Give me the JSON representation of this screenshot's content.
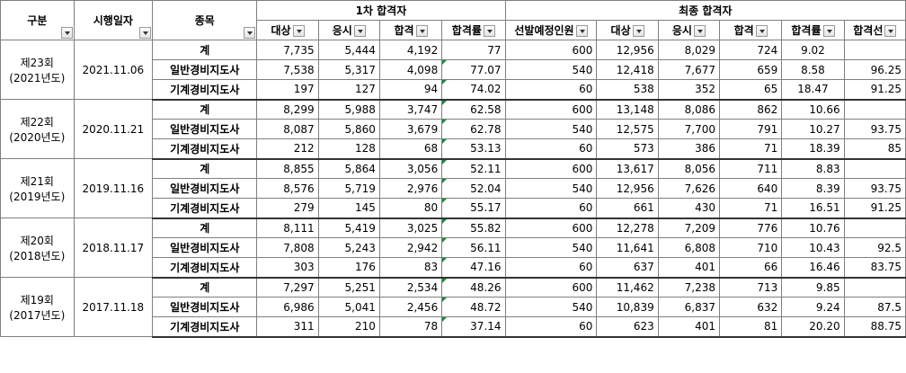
{
  "header": {
    "group_round1": "1차 합격자",
    "group_final": "최종 합격자",
    "col_category": "구분",
    "col_date": "시행일자",
    "col_type": "종목",
    "sub_round1": [
      "대상",
      "응시",
      "합격",
      "합격률"
    ],
    "sub_final": [
      "선발예정인원",
      "대상",
      "응시",
      "합격",
      "합격률",
      "합격선"
    ]
  },
  "sessions": [
    {
      "name": "제23회",
      "year": "(2021년도)",
      "date": "2021.11.06",
      "rows": [
        {
          "type": "계",
          "r1": [
            "7,735",
            "5,444",
            "4,192",
            "77"
          ],
          "fin": [
            "600",
            "12,956",
            "8,029",
            "724",
            "9.02",
            ""
          ]
        },
        {
          "type": "일반경비지도사",
          "r1": [
            "7,538",
            "5,317",
            "4,098",
            "77.07"
          ],
          "fin": [
            "540",
            "12,418",
            "7,677",
            "659",
            "8.58",
            "96.25"
          ]
        },
        {
          "type": "기계경비지도사",
          "r1": [
            "197",
            "127",
            "94",
            "74.02"
          ],
          "fin": [
            "60",
            "538",
            "352",
            "65",
            "18.47",
            "91.25"
          ]
        }
      ]
    },
    {
      "name": "제22회",
      "year": "(2020년도)",
      "date": "2020.11.21",
      "rows": [
        {
          "type": "계",
          "r1": [
            "8,299",
            "5,988",
            "3,747",
            "62.58"
          ],
          "fin": [
            "600",
            "13,148",
            "8,086",
            "862",
            "10.66",
            ""
          ]
        },
        {
          "type": "일반경비지도사",
          "r1": [
            "8,087",
            "5,860",
            "3,679",
            "62.78"
          ],
          "fin": [
            "540",
            "12,575",
            "7,700",
            "791",
            "10.27",
            "93.75"
          ]
        },
        {
          "type": "기계경비지도사",
          "r1": [
            "212",
            "128",
            "68",
            "53.13"
          ],
          "fin": [
            "60",
            "573",
            "386",
            "71",
            "18.39",
            "85"
          ]
        }
      ]
    },
    {
      "name": "제21회",
      "year": "(2019년도)",
      "date": "2019.11.16",
      "rows": [
        {
          "type": "계",
          "r1": [
            "8,855",
            "5,864",
            "3,056",
            "52.11"
          ],
          "fin": [
            "600",
            "13,617",
            "8,056",
            "711",
            "8.83",
            ""
          ]
        },
        {
          "type": "일반경비지도사",
          "r1": [
            "8,576",
            "5,719",
            "2,976",
            "52.04"
          ],
          "fin": [
            "540",
            "12,956",
            "7,626",
            "640",
            "8.39",
            "93.75"
          ]
        },
        {
          "type": "기계경비지도사",
          "r1": [
            "279",
            "145",
            "80",
            "55.17"
          ],
          "fin": [
            "60",
            "661",
            "430",
            "71",
            "16.51",
            "91.25"
          ]
        }
      ]
    },
    {
      "name": "제20회",
      "year": "(2018년도)",
      "date": "2018.11.17",
      "rows": [
        {
          "type": "계",
          "r1": [
            "8,111",
            "5,419",
            "3,025",
            "55.82"
          ],
          "fin": [
            "600",
            "12,278",
            "7,209",
            "776",
            "10.76",
            ""
          ]
        },
        {
          "type": "일반경비지도사",
          "r1": [
            "7,808",
            "5,243",
            "2,942",
            "56.11"
          ],
          "fin": [
            "540",
            "11,641",
            "6,808",
            "710",
            "10.43",
            "92.5"
          ]
        },
        {
          "type": "기계경비지도사",
          "r1": [
            "303",
            "176",
            "83",
            "47.16"
          ],
          "fin": [
            "60",
            "637",
            "401",
            "66",
            "16.46",
            "83.75"
          ]
        }
      ]
    },
    {
      "name": "제19회",
      "year": "(2017년도)",
      "date": "2017.11.18",
      "rows": [
        {
          "type": "계",
          "r1": [
            "7,297",
            "5,251",
            "2,534",
            "48.26"
          ],
          "fin": [
            "600",
            "11,462",
            "7,238",
            "713",
            "9.85",
            ""
          ]
        },
        {
          "type": "일반경비지도사",
          "r1": [
            "6,986",
            "5,041",
            "2,456",
            "48.72"
          ],
          "fin": [
            "540",
            "10,839",
            "6,837",
            "632",
            "9.24",
            "87.5"
          ]
        },
        {
          "type": "기계경비지도사",
          "r1": [
            "311",
            "210",
            "78",
            "37.14"
          ],
          "fin": [
            "60",
            "623",
            "401",
            "81",
            "20.20",
            "88.75"
          ]
        }
      ]
    }
  ]
}
